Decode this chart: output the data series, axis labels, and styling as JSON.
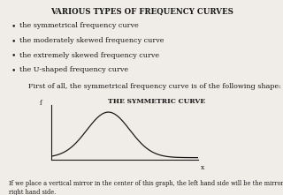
{
  "title": "VARIOUS TYPES OF FREQUENCY CURVES",
  "bullet_points": [
    "the symmetrical frequency curve",
    "the moderately skewed frequency curve",
    "the extremely skewed frequency curve",
    "the U-shaped frequency curve"
  ],
  "intro_text": "First of all, the symmetrical frequency curve is of the following shape:",
  "curve_title": "THE SYMMETRIC CURVE",
  "footer_text": "If we place a vertical mirror in the center of this graph, the left hand side will be the mirror image of the\nright hand side.",
  "bg_color": "#f0ede8",
  "text_color": "#1a1a1a",
  "curve_color": "#1a1a1a",
  "axis_color": "#1a1a1a"
}
